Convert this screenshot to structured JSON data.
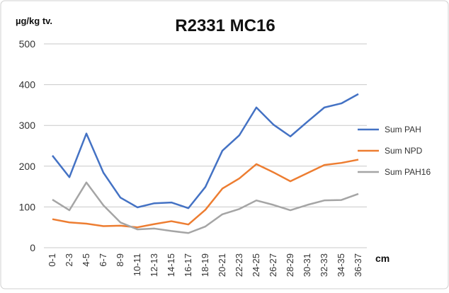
{
  "chart_data": {
    "type": "line",
    "title": "R2331 MC16",
    "y_label": "µg/kg tv.",
    "x_label": "cm",
    "categories": [
      "0-1",
      "2-3",
      "4-5",
      "6-7",
      "8-9",
      "10-11",
      "12-13",
      "14-15",
      "16-17",
      "18-19",
      "20-21",
      "22-23",
      "24-25",
      "26-27",
      "28-29",
      "30-31",
      "32-33",
      "34-35",
      "36-37"
    ],
    "series": [
      {
        "name": "Sum PAH",
        "color": "#4472c4",
        "values": [
          226,
          173,
          280,
          184,
          123,
          99,
          109,
          111,
          97,
          149,
          238,
          276,
          344,
          302,
          273,
          309,
          344,
          354,
          377
        ]
      },
      {
        "name": "Sum NPD",
        "color": "#ed7d31",
        "values": [
          70,
          62,
          59,
          53,
          54,
          50,
          58,
          65,
          57,
          93,
          145,
          170,
          205,
          185,
          163,
          183,
          203,
          208,
          216
        ]
      },
      {
        "name": "Sum PAH16",
        "color": "#a5a5a5",
        "values": [
          118,
          92,
          160,
          104,
          62,
          45,
          47,
          41,
          36,
          52,
          82,
          95,
          116,
          105,
          92,
          105,
          116,
          117,
          132
        ]
      }
    ],
    "ylim": [
      0,
      500
    ],
    "yticks": [
      0,
      100,
      200,
      300,
      400,
      500
    ],
    "grid": true,
    "legend": "right"
  }
}
